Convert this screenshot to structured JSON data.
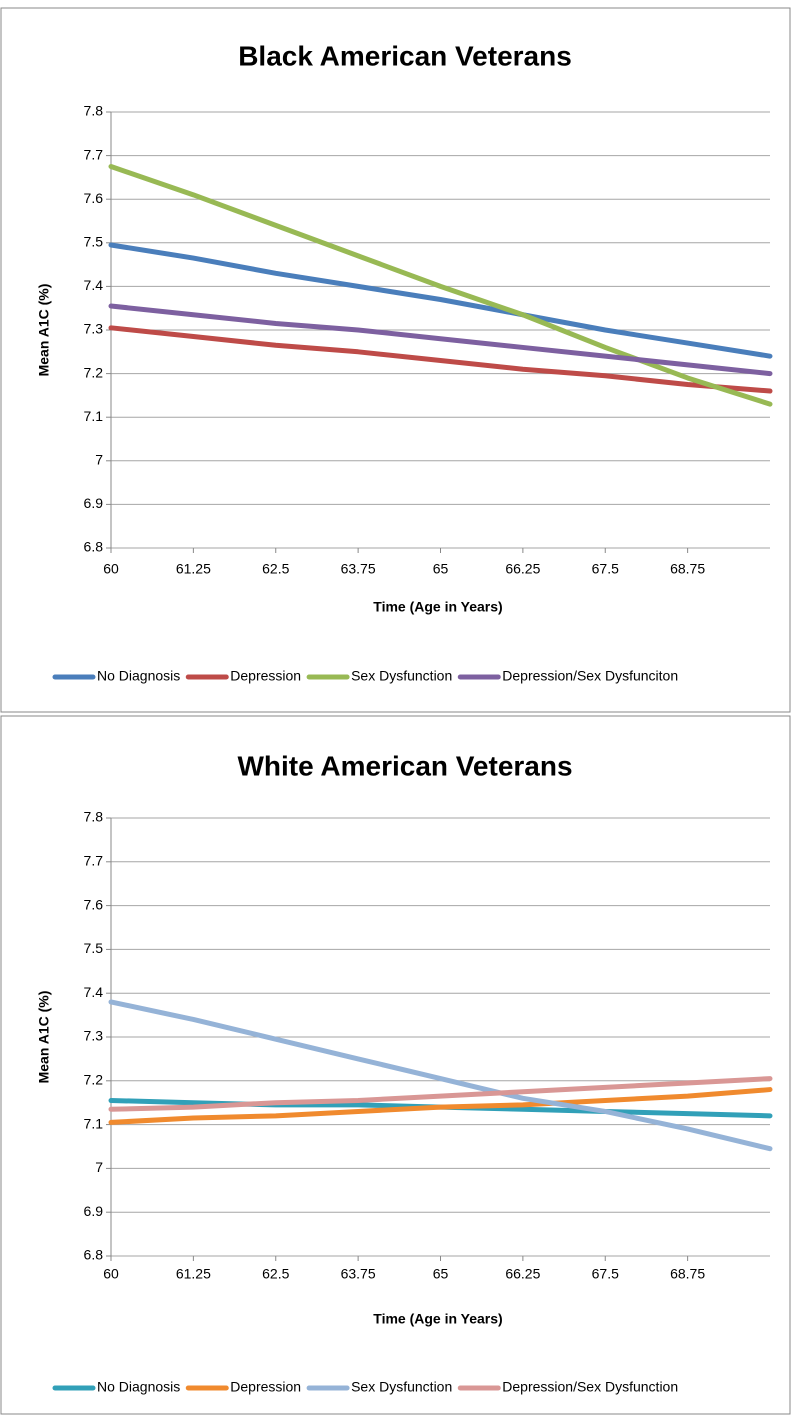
{
  "chart_data": [
    {
      "type": "line",
      "title": "Black American Veterans",
      "x_label": "Time (Age in Years)",
      "y_label": "Mean A1C (%)",
      "x": [
        60,
        61.25,
        62.5,
        63.75,
        65,
        66.25,
        67.5,
        68.75,
        70
      ],
      "xlim": [
        60,
        70
      ],
      "xticks": [
        60,
        61.25,
        62.5,
        63.75,
        65,
        66.25,
        67.5,
        68.75
      ],
      "ylim": [
        6.8,
        7.8
      ],
      "yticks": [
        6.8,
        6.9,
        7,
        7.1,
        7.2,
        7.3,
        7.4,
        7.5,
        7.6,
        7.7,
        7.8
      ],
      "grid": true,
      "legend": "bottom",
      "series": [
        {
          "name": "No Diagnosis",
          "color": "#4a7ebb",
          "values": [
            7.495,
            7.465,
            7.43,
            7.4,
            7.37,
            7.335,
            7.3,
            7.27,
            7.24
          ]
        },
        {
          "name": "Depression",
          "color": "#be4b48",
          "values": [
            7.305,
            7.285,
            7.265,
            7.25,
            7.23,
            7.21,
            7.195,
            7.175,
            7.16
          ]
        },
        {
          "name": "Sex Dysfunction",
          "color": "#98b954",
          "values": [
            7.675,
            7.61,
            7.54,
            7.47,
            7.4,
            7.335,
            7.26,
            7.19,
            7.13
          ]
        },
        {
          "name": "Depression/Sex Dysfunciton",
          "color": "#7d60a0",
          "values": [
            7.355,
            7.335,
            7.315,
            7.3,
            7.28,
            7.26,
            7.24,
            7.22,
            7.2
          ]
        }
      ]
    },
    {
      "type": "line",
      "title": "White American Veterans",
      "x_label": "Time (Age in Years)",
      "y_label": "Mean A1C (%)",
      "x": [
        60,
        61.25,
        62.5,
        63.75,
        65,
        66.25,
        67.5,
        68.75,
        70
      ],
      "xlim": [
        60,
        70
      ],
      "xticks": [
        60,
        61.25,
        62.5,
        63.75,
        65,
        66.25,
        67.5,
        68.75
      ],
      "ylim": [
        6.8,
        7.8
      ],
      "yticks": [
        6.8,
        6.9,
        7,
        7.1,
        7.2,
        7.3,
        7.4,
        7.5,
        7.6,
        7.7,
        7.8
      ],
      "grid": true,
      "legend": "bottom",
      "series": [
        {
          "name": "No Diagnosis",
          "color": "#31a0b8",
          "values": [
            7.155,
            7.15,
            7.145,
            7.145,
            7.14,
            7.135,
            7.13,
            7.125,
            7.12
          ]
        },
        {
          "name": "Depression",
          "color": "#f08a2e",
          "values": [
            7.105,
            7.115,
            7.12,
            7.13,
            7.14,
            7.145,
            7.155,
            7.165,
            7.18
          ]
        },
        {
          "name": "Sex Dysfunction",
          "color": "#95b3d7",
          "values": [
            7.38,
            7.34,
            7.295,
            7.25,
            7.205,
            7.16,
            7.13,
            7.09,
            7.045
          ]
        },
        {
          "name": "Depression/Sex Dysfunction",
          "color": "#d99795",
          "values": [
            7.135,
            7.14,
            7.15,
            7.155,
            7.165,
            7.175,
            7.185,
            7.195,
            7.205
          ]
        }
      ]
    }
  ]
}
